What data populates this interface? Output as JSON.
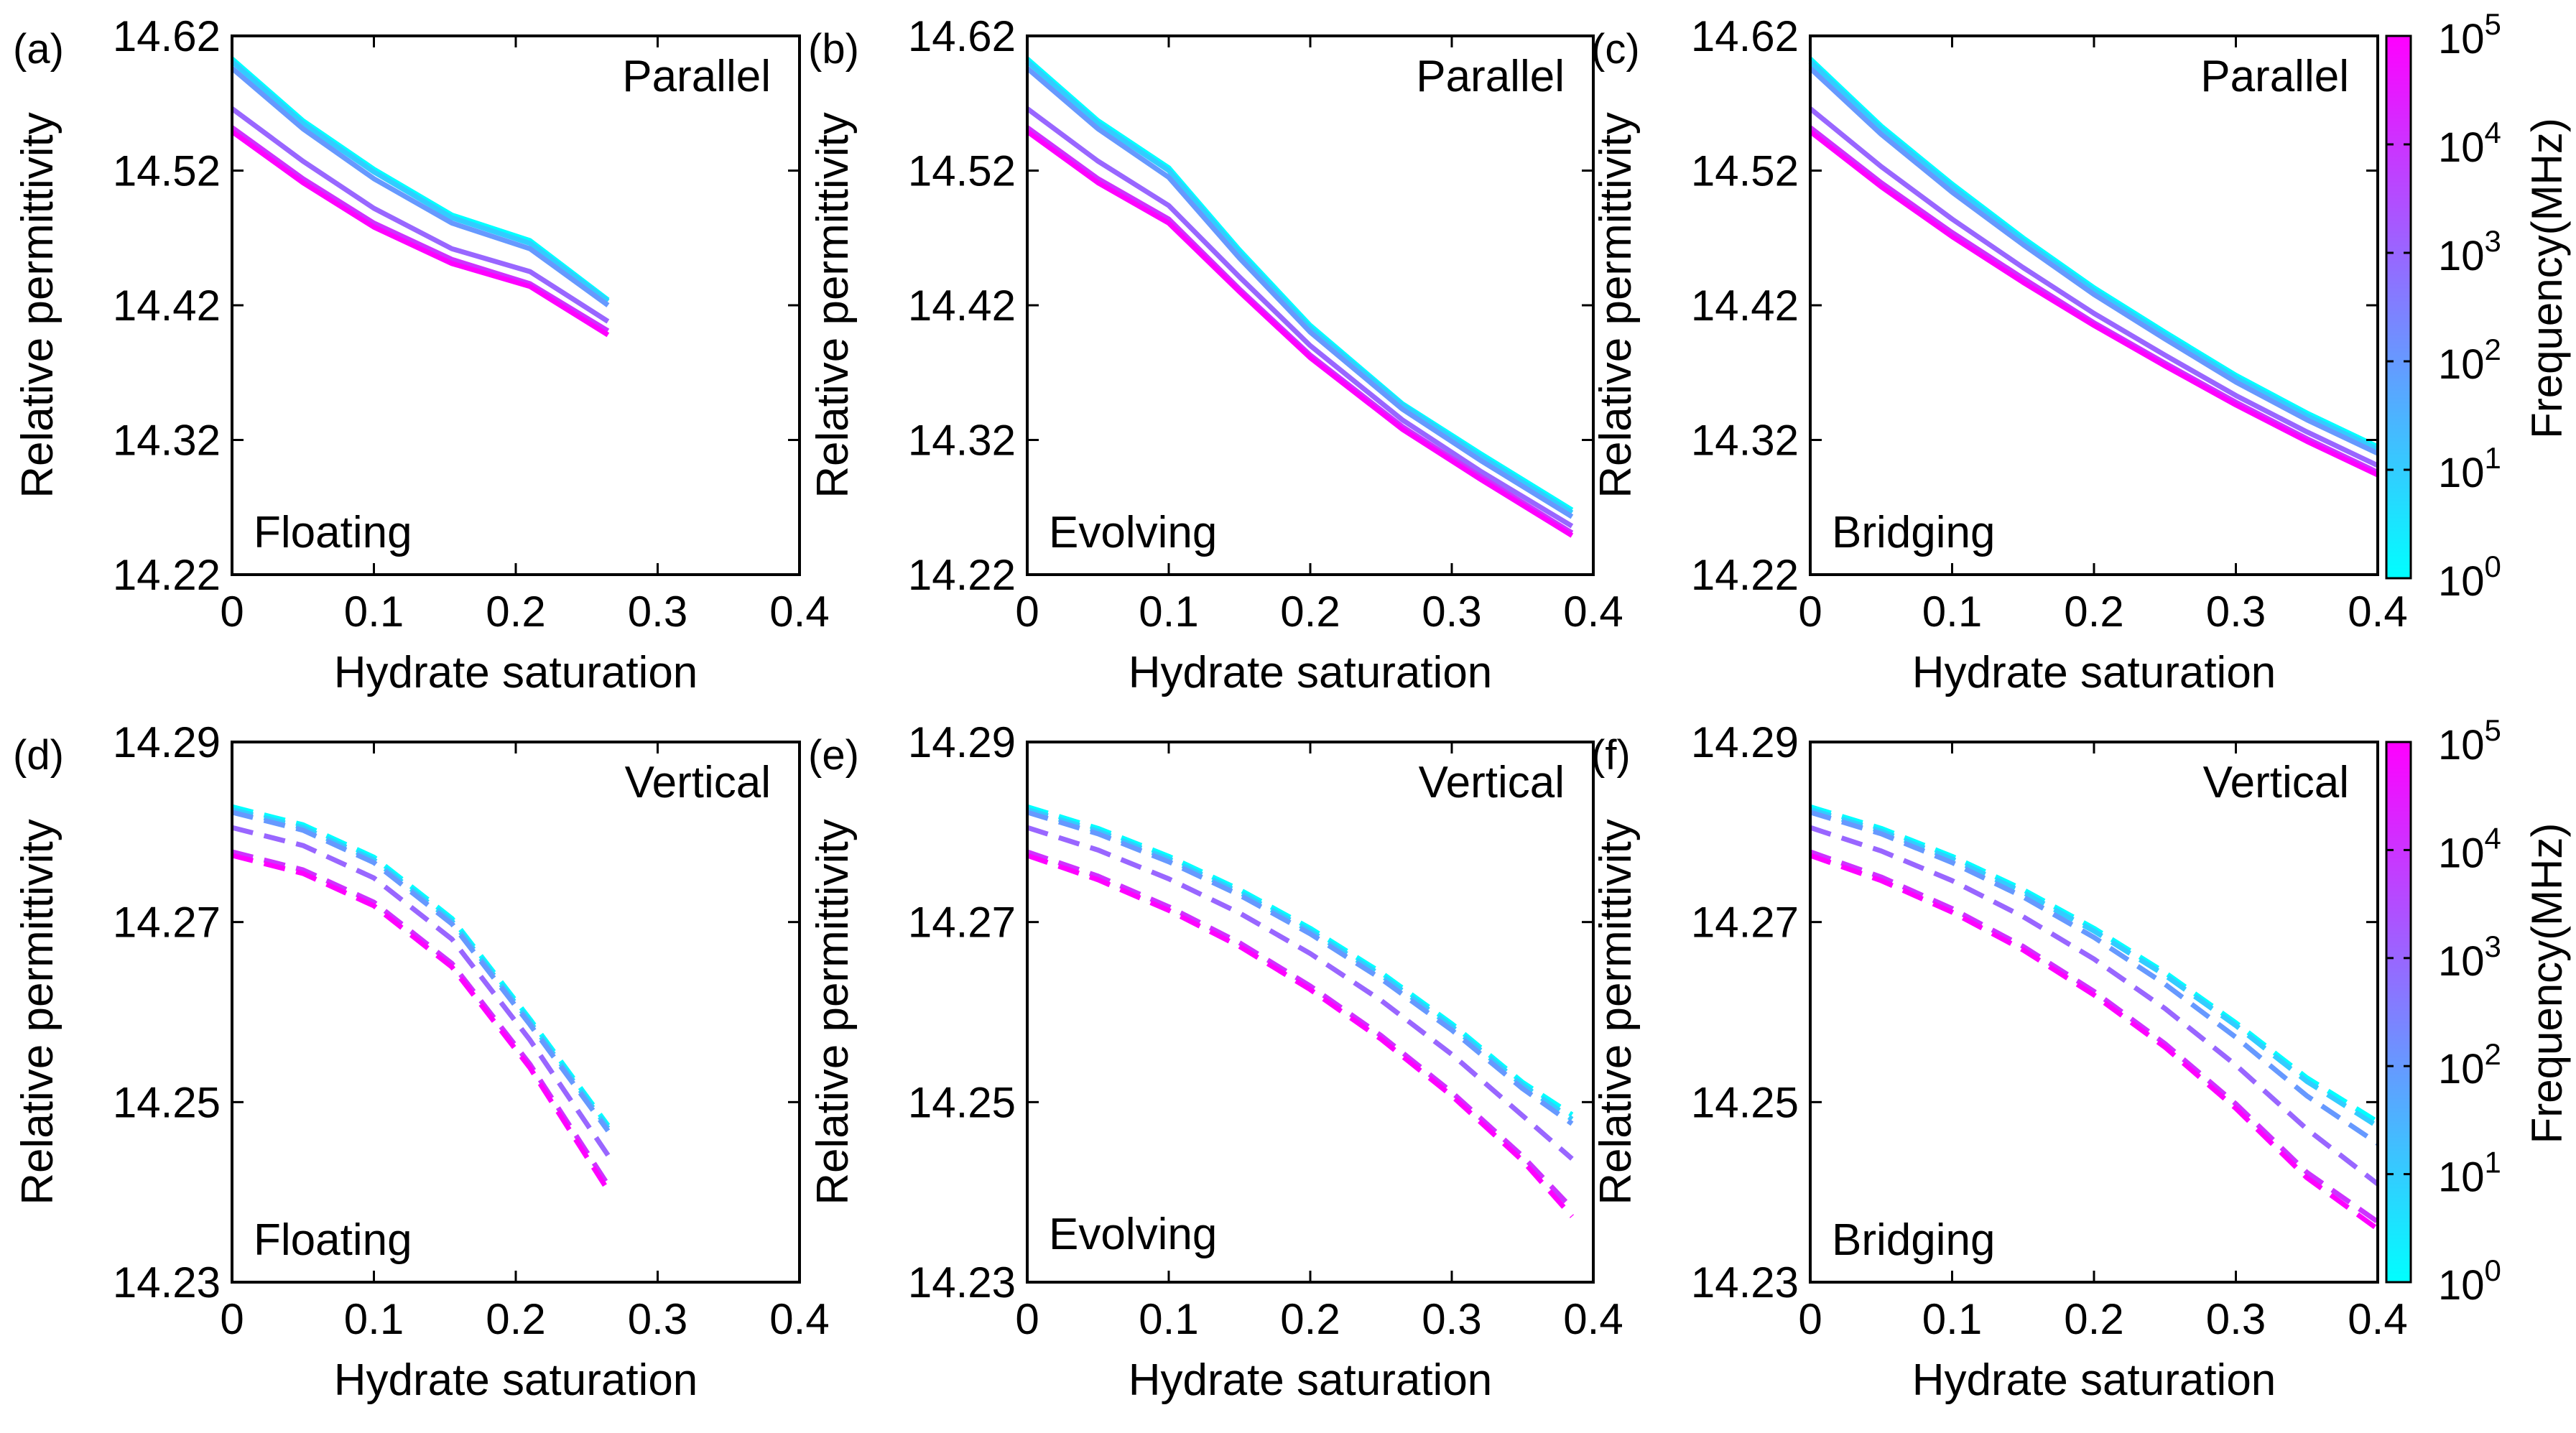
{
  "figure": {
    "colormap": [
      "#00ffff",
      "#ff00ff"
    ],
    "colorbar": {
      "title": "Frequency(MHz)",
      "ticks": [
        {
          "base": "10",
          "exp": "0"
        },
        {
          "base": "10",
          "exp": "1"
        },
        {
          "base": "10",
          "exp": "2"
        },
        {
          "base": "10",
          "exp": "3"
        },
        {
          "base": "10",
          "exp": "4"
        },
        {
          "base": "10",
          "exp": "5"
        }
      ]
    }
  },
  "chart_data": [
    {
      "type": "line",
      "panel": "(a)",
      "title": "",
      "orientation_label": "Parallel",
      "model_label": "Floating",
      "xlabel": "Hydrate saturation",
      "ylabel": "Relative permittivity",
      "xlim": [
        0,
        0.4
      ],
      "ylim": [
        14.22,
        14.62
      ],
      "xticks": [
        "0",
        "0.1",
        "0.2",
        "0.3",
        "0.4"
      ],
      "yticks": [
        "14.22",
        "14.32",
        "14.42",
        "14.52",
        "14.62"
      ],
      "line_style": "solid",
      "x": [
        0,
        0.05,
        0.1,
        0.155,
        0.21,
        0.265
      ],
      "series": [
        {
          "name": "10^0 MHz",
          "values": [
            14.603,
            14.557,
            14.521,
            14.487,
            14.468,
            14.424
          ]
        },
        {
          "name": "10^1 MHz",
          "values": [
            14.601,
            14.555,
            14.519,
            14.485,
            14.466,
            14.423
          ]
        },
        {
          "name": "10^2 MHz",
          "values": [
            14.596,
            14.551,
            14.514,
            14.481,
            14.462,
            14.42
          ]
        },
        {
          "name": "10^3 MHz",
          "values": [
            14.566,
            14.527,
            14.492,
            14.462,
            14.445,
            14.408
          ]
        },
        {
          "name": "10^4 MHz",
          "values": [
            14.552,
            14.514,
            14.481,
            14.454,
            14.436,
            14.401
          ]
        },
        {
          "name": "10^5 MHz",
          "values": [
            14.549,
            14.511,
            14.478,
            14.451,
            14.434,
            14.398
          ]
        }
      ]
    },
    {
      "type": "line",
      "panel": "(b)",
      "title": "",
      "orientation_label": "Parallel",
      "model_label": "Evolving",
      "xlabel": "Hydrate saturation",
      "ylabel": "Relative permittivity",
      "xlim": [
        0,
        0.4
      ],
      "ylim": [
        14.22,
        14.62
      ],
      "xticks": [
        "0",
        "0.1",
        "0.2",
        "0.3",
        "0.4"
      ],
      "yticks": [
        "14.22",
        "14.32",
        "14.42",
        "14.52",
        "14.62"
      ],
      "line_style": "solid",
      "x": [
        0,
        0.05,
        0.1,
        0.15,
        0.2,
        0.265,
        0.32,
        0.385
      ],
      "series": [
        {
          "name": "10^0 MHz",
          "values": [
            14.603,
            14.557,
            14.522,
            14.461,
            14.405,
            14.347,
            14.31,
            14.268
          ]
        },
        {
          "name": "10^1 MHz",
          "values": [
            14.601,
            14.555,
            14.52,
            14.459,
            14.403,
            14.346,
            14.308,
            14.266
          ]
        },
        {
          "name": "10^2 MHz",
          "values": [
            14.596,
            14.551,
            14.515,
            14.455,
            14.4,
            14.343,
            14.305,
            14.263
          ]
        },
        {
          "name": "10^3 MHz",
          "values": [
            14.566,
            14.527,
            14.494,
            14.441,
            14.39,
            14.335,
            14.297,
            14.256
          ]
        },
        {
          "name": "10^4 MHz",
          "values": [
            14.552,
            14.514,
            14.484,
            14.432,
            14.383,
            14.33,
            14.293,
            14.251
          ]
        },
        {
          "name": "10^5 MHz",
          "values": [
            14.549,
            14.511,
            14.481,
            14.43,
            14.381,
            14.328,
            14.291,
            14.249
          ]
        }
      ]
    },
    {
      "type": "line",
      "panel": "(c)",
      "title": "",
      "orientation_label": "Parallel",
      "model_label": "Bridging",
      "xlabel": "Hydrate saturation",
      "ylabel": "Relative permittivity",
      "xlim": [
        0,
        0.4
      ],
      "ylim": [
        14.22,
        14.62
      ],
      "xticks": [
        "0",
        "0.1",
        "0.2",
        "0.3",
        "0.4"
      ],
      "yticks": [
        "14.22",
        "14.32",
        "14.42",
        "14.52",
        "14.62"
      ],
      "line_style": "solid",
      "x": [
        0,
        0.05,
        0.1,
        0.15,
        0.2,
        0.25,
        0.3,
        0.35,
        0.4
      ],
      "series": [
        {
          "name": "10^0 MHz",
          "values": [
            14.603,
            14.553,
            14.51,
            14.47,
            14.433,
            14.4,
            14.368,
            14.34,
            14.315
          ]
        },
        {
          "name": "10^1 MHz",
          "values": [
            14.601,
            14.551,
            14.508,
            14.468,
            14.431,
            14.398,
            14.366,
            14.338,
            14.313
          ]
        },
        {
          "name": "10^2 MHz",
          "values": [
            14.596,
            14.547,
            14.504,
            14.465,
            14.428,
            14.395,
            14.363,
            14.335,
            14.31
          ]
        },
        {
          "name": "10^3 MHz",
          "values": [
            14.566,
            14.523,
            14.484,
            14.448,
            14.414,
            14.383,
            14.353,
            14.326,
            14.301
          ]
        },
        {
          "name": "10^4 MHz",
          "values": [
            14.552,
            14.511,
            14.474,
            14.44,
            14.407,
            14.377,
            14.348,
            14.321,
            14.296
          ]
        },
        {
          "name": "10^5 MHz",
          "values": [
            14.549,
            14.508,
            14.471,
            14.437,
            14.405,
            14.375,
            14.346,
            14.319,
            14.294
          ]
        }
      ]
    },
    {
      "type": "line",
      "panel": "(d)",
      "title": "",
      "orientation_label": "Vertical",
      "model_label": "Floating",
      "xlabel": "Hydrate saturation",
      "ylabel": "Relative permittivity",
      "xlim": [
        0,
        0.4
      ],
      "ylim": [
        14.23,
        14.29
      ],
      "xticks": [
        "0",
        "0.1",
        "0.2",
        "0.3",
        "0.4"
      ],
      "yticks": [
        "14.23",
        "14.25",
        "14.27",
        "14.29"
      ],
      "line_style": "dashed",
      "x": [
        0,
        0.05,
        0.1,
        0.155,
        0.21,
        0.265
      ],
      "series": [
        {
          "name": "10^0 MHz",
          "values": [
            14.2828,
            14.2808,
            14.2772,
            14.2704,
            14.2592,
            14.2474
          ]
        },
        {
          "name": "10^1 MHz",
          "values": [
            14.2825,
            14.2805,
            14.2769,
            14.2701,
            14.2589,
            14.2471
          ]
        },
        {
          "name": "10^2 MHz",
          "values": [
            14.2822,
            14.2802,
            14.2766,
            14.2698,
            14.2586,
            14.2468
          ]
        },
        {
          "name": "10^3 MHz",
          "values": [
            14.2805,
            14.2785,
            14.2749,
            14.2681,
            14.2569,
            14.2441
          ]
        },
        {
          "name": "10^4 MHz",
          "values": [
            14.2778,
            14.2758,
            14.2722,
            14.2654,
            14.2542,
            14.2408
          ]
        },
        {
          "name": "10^5 MHz",
          "values": [
            14.2774,
            14.2754,
            14.2718,
            14.265,
            14.2538,
            14.2402
          ]
        }
      ]
    },
    {
      "type": "line",
      "panel": "(e)",
      "title": "",
      "orientation_label": "Vertical",
      "model_label": "Evolving",
      "xlabel": "Hydrate saturation",
      "ylabel": "Relative permittivity",
      "xlim": [
        0,
        0.4
      ],
      "ylim": [
        14.23,
        14.29
      ],
      "xticks": [
        "0",
        "0.1",
        "0.2",
        "0.3",
        "0.4"
      ],
      "yticks": [
        "14.23",
        "14.25",
        "14.27",
        "14.29"
      ],
      "line_style": "dashed",
      "x": [
        0,
        0.05,
        0.1,
        0.15,
        0.2,
        0.25,
        0.3,
        0.35,
        0.385
      ],
      "series": [
        {
          "name": "10^0 MHz",
          "values": [
            14.2828,
            14.2804,
            14.2773,
            14.2736,
            14.2693,
            14.2644,
            14.2587,
            14.2522,
            14.2486
          ]
        },
        {
          "name": "10^1 MHz",
          "values": [
            14.2825,
            14.2801,
            14.277,
            14.2733,
            14.269,
            14.2641,
            14.2584,
            14.2519,
            14.2481
          ]
        },
        {
          "name": "10^2 MHz",
          "values": [
            14.2822,
            14.2798,
            14.2767,
            14.273,
            14.2687,
            14.2637,
            14.258,
            14.2515,
            14.2476
          ]
        },
        {
          "name": "10^3 MHz",
          "values": [
            14.2805,
            14.278,
            14.2748,
            14.271,
            14.2665,
            14.2613,
            14.2553,
            14.2485,
            14.2437
          ]
        },
        {
          "name": "10^4 MHz",
          "values": [
            14.2778,
            14.2751,
            14.2717,
            14.2677,
            14.2629,
            14.2574,
            14.2511,
            14.244,
            14.2382
          ]
        },
        {
          "name": "10^5 MHz",
          "values": [
            14.2774,
            14.2747,
            14.2713,
            14.2673,
            14.2625,
            14.257,
            14.2507,
            14.2435,
            14.2373
          ]
        }
      ]
    },
    {
      "type": "line",
      "panel": "(f)",
      "title": "",
      "orientation_label": "Vertical",
      "model_label": "Bridging",
      "xlabel": "Hydrate saturation",
      "ylabel": "Relative permittivity",
      "xlim": [
        0,
        0.4
      ],
      "ylim": [
        14.23,
        14.29
      ],
      "xticks": [
        "0",
        "0.1",
        "0.2",
        "0.3",
        "0.4"
      ],
      "yticks": [
        "14.23",
        "14.25",
        "14.27",
        "14.29"
      ],
      "line_style": "dashed",
      "x": [
        0,
        0.05,
        0.1,
        0.15,
        0.2,
        0.25,
        0.3,
        0.35,
        0.4
      ],
      "series": [
        {
          "name": "10^0 MHz",
          "values": [
            14.2828,
            14.2804,
            14.2773,
            14.2736,
            14.2693,
            14.2644,
            14.2588,
            14.2527,
            14.2478
          ]
        },
        {
          "name": "10^1 MHz",
          "values": [
            14.2825,
            14.2801,
            14.277,
            14.2733,
            14.269,
            14.2641,
            14.2585,
            14.2523,
            14.2473
          ]
        },
        {
          "name": "10^2 MHz",
          "values": [
            14.2822,
            14.2798,
            14.2766,
            14.2728,
            14.2683,
            14.2631,
            14.2572,
            14.2507,
            14.2454
          ]
        },
        {
          "name": "10^3 MHz",
          "values": [
            14.2805,
            14.2779,
            14.2746,
            14.2706,
            14.2659,
            14.2604,
            14.2541,
            14.247,
            14.2409
          ]
        },
        {
          "name": "10^4 MHz",
          "values": [
            14.2778,
            14.275,
            14.2715,
            14.2673,
            14.2623,
            14.2565,
            14.2498,
            14.2422,
            14.2367
          ]
        },
        {
          "name": "10^5 MHz",
          "values": [
            14.2774,
            14.2746,
            14.2711,
            14.2669,
            14.2619,
            14.2561,
            14.2493,
            14.2416,
            14.2359
          ]
        }
      ]
    }
  ]
}
